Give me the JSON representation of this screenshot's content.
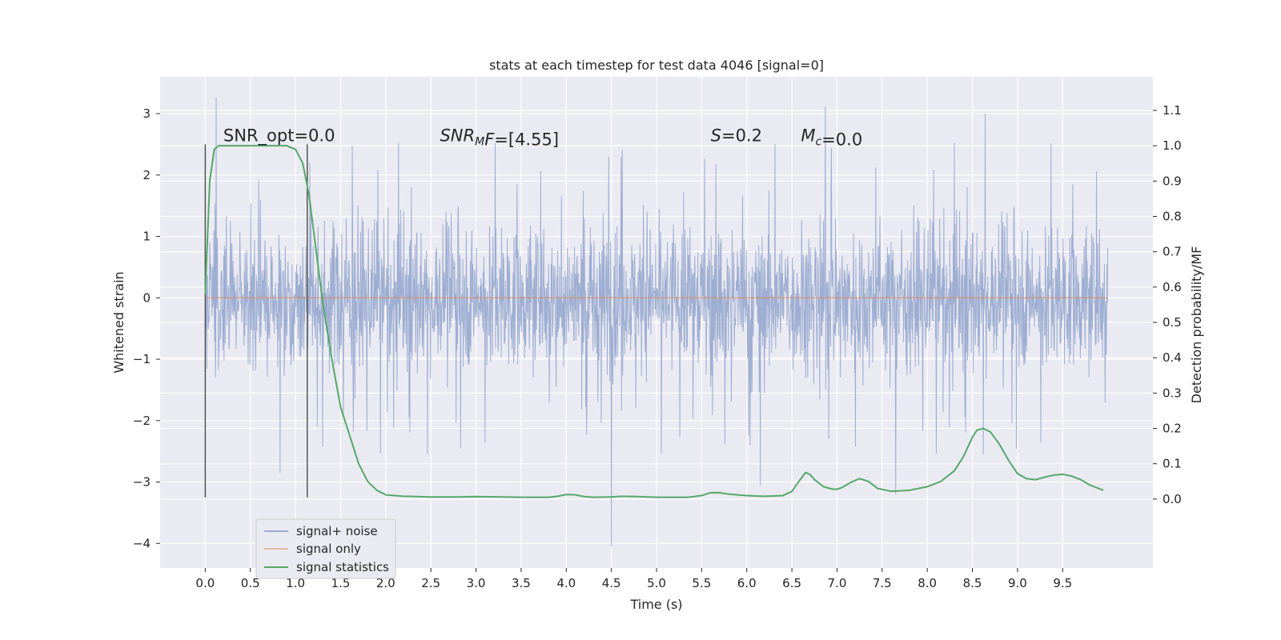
{
  "chart_data": {
    "type": "line",
    "title": "stats at each timestep for test data 4046 [signal=0]",
    "xlabel": "Time (s)",
    "ylabel": "Whitened strain",
    "y2label": "Detection probability/MF",
    "xlim": [
      -0.5,
      10.5
    ],
    "ylim": [
      -4.4,
      3.6
    ],
    "y2lim": [
      -0.195,
      1.195
    ],
    "x_ticks": [
      0.0,
      0.5,
      1.0,
      1.5,
      2.0,
      2.5,
      3.0,
      3.5,
      4.0,
      4.5,
      5.0,
      5.5,
      6.0,
      6.5,
      7.0,
      7.5,
      8.0,
      8.5,
      9.0,
      9.5
    ],
    "x_tick_labels": [
      "0.0",
      "0.5",
      "1.0",
      "1.5",
      "2.0",
      "2.5",
      "3.0",
      "3.5",
      "4.0",
      "4.5",
      "5.0",
      "5.5",
      "6.0",
      "6.5",
      "7.0",
      "7.5",
      "8.0",
      "8.5",
      "9.0",
      "9.5"
    ],
    "y_ticks": [
      3,
      2,
      1,
      0,
      -1,
      -2,
      -3,
      -4
    ],
    "y_tick_labels": [
      "3",
      "2",
      "1",
      "0",
      "−1",
      "−2",
      "−3",
      "−4"
    ],
    "y2_ticks": [
      1.1,
      1.0,
      0.9,
      0.8,
      0.7,
      0.6,
      0.5,
      0.4,
      0.3,
      0.2,
      0.1,
      0.0
    ],
    "y2_tick_labels": [
      "1.1",
      "1.0",
      "0.9",
      "0.8",
      "0.7",
      "0.6",
      "0.5",
      "0.4",
      "0.3",
      "0.2",
      "0.1",
      "0.0"
    ],
    "grid": true,
    "legend_position": "bottom-left",
    "colors": {
      "background": "#eaeaf2",
      "grid": "#ffffff",
      "noise": "#9aabd0",
      "signal": "#dd8452",
      "stats": "#55a868",
      "vline": "#555555"
    },
    "series": [
      {
        "name": "signal+ noise",
        "axis": "left",
        "noise_core_amplitude": 0.9,
        "spike_peaks": [
          {
            "x": 0.12,
            "y": 3.27
          },
          {
            "x": 6.87,
            "y": 3.11
          },
          {
            "x": 8.64,
            "y": 3.0
          },
          {
            "x": 4.5,
            "y": -4.05
          },
          {
            "x": 7.65,
            "y": -3.2
          },
          {
            "x": 0.83,
            "y": -2.85
          },
          {
            "x": 6.15,
            "y": -3.05
          }
        ],
        "x_start": 0.0,
        "x_end": 10.0
      },
      {
        "name": "signal only",
        "axis": "left",
        "x": [
          0.0,
          10.0
        ],
        "y": [
          0.0,
          0.0
        ]
      },
      {
        "name": "signal statistics",
        "axis": "right",
        "x": [
          0.0,
          0.05,
          0.1,
          0.15,
          0.3,
          0.5,
          0.75,
          0.9,
          1.0,
          1.08,
          1.15,
          1.22,
          1.3,
          1.4,
          1.5,
          1.6,
          1.7,
          1.8,
          1.9,
          2.0,
          2.2,
          2.5,
          2.8,
          3.0,
          3.3,
          3.5,
          3.7,
          3.8,
          3.9,
          4.0,
          4.1,
          4.2,
          4.3,
          4.5,
          4.6,
          4.8,
          5.0,
          5.2,
          5.35,
          5.5,
          5.6,
          5.7,
          5.8,
          6.0,
          6.2,
          6.4,
          6.5,
          6.55,
          6.6,
          6.65,
          6.7,
          6.75,
          6.85,
          6.95,
          7.0,
          7.05,
          7.15,
          7.25,
          7.35,
          7.45,
          7.6,
          7.8,
          8.0,
          8.15,
          8.3,
          8.4,
          8.5,
          8.55,
          8.62,
          8.7,
          8.8,
          8.9,
          9.0,
          9.1,
          9.2,
          9.3,
          9.4,
          9.5,
          9.6,
          9.7,
          9.8,
          9.95
        ],
        "y": [
          0.58,
          0.9,
          0.99,
          1.0,
          1.0,
          1.0,
          1.0,
          1.0,
          0.99,
          0.95,
          0.86,
          0.72,
          0.56,
          0.4,
          0.26,
          0.18,
          0.1,
          0.05,
          0.025,
          0.012,
          0.008,
          0.006,
          0.006,
          0.007,
          0.006,
          0.005,
          0.005,
          0.005,
          0.008,
          0.013,
          0.012,
          0.007,
          0.005,
          0.006,
          0.008,
          0.007,
          0.005,
          0.005,
          0.005,
          0.01,
          0.018,
          0.018,
          0.014,
          0.01,
          0.008,
          0.01,
          0.022,
          0.04,
          0.058,
          0.075,
          0.07,
          0.055,
          0.035,
          0.028,
          0.028,
          0.032,
          0.047,
          0.058,
          0.05,
          0.03,
          0.022,
          0.025,
          0.035,
          0.05,
          0.08,
          0.12,
          0.175,
          0.195,
          0.2,
          0.19,
          0.155,
          0.11,
          0.072,
          0.058,
          0.055,
          0.062,
          0.068,
          0.07,
          0.065,
          0.055,
          0.04,
          0.025
        ]
      }
    ],
    "vlines": [
      {
        "x": 0.0,
        "ymin": -3.25,
        "ymax": 2.5
      },
      {
        "x": 1.13,
        "ymin": -3.25,
        "ymax": 2.5
      }
    ],
    "annotations": [
      {
        "x": 0.2,
        "y": 2.55,
        "parts": [
          {
            "t": "SNR_opt=0.0",
            "i": false,
            "sub": false
          }
        ]
      },
      {
        "x": 2.6,
        "y": 2.55,
        "parts": [
          {
            "t": "SNR",
            "i": true,
            "sub": false
          },
          {
            "t": "M",
            "i": true,
            "sub": true
          },
          {
            "t": "F",
            "i": true,
            "sub": false
          },
          {
            "t": "=[4.55]",
            "i": false,
            "sub": false
          }
        ]
      },
      {
        "x": 5.6,
        "y": 2.55,
        "parts": [
          {
            "t": "S",
            "i": true,
            "sub": false
          },
          {
            "t": "=0.2",
            "i": false,
            "sub": false
          }
        ]
      },
      {
        "x": 6.6,
        "y": 2.55,
        "parts": [
          {
            "t": "M",
            "i": true,
            "sub": false
          },
          {
            "t": "c",
            "i": true,
            "sub": true
          },
          {
            "t": "=0.0",
            "i": false,
            "sub": false
          }
        ]
      }
    ]
  }
}
